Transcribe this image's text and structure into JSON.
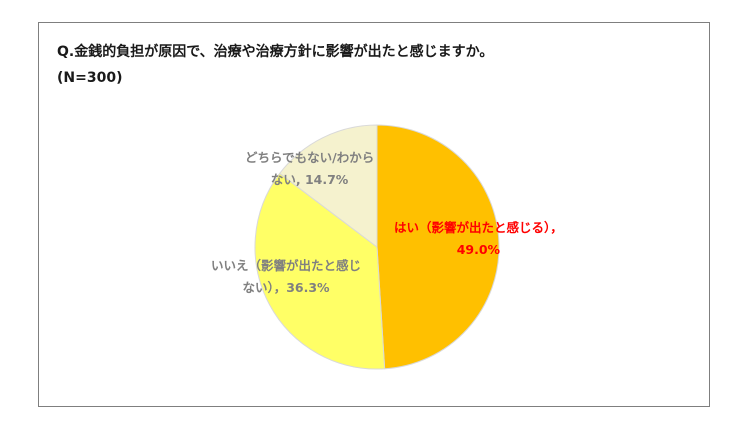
{
  "chart_data": {
    "type": "pie",
    "title": "Q.金銭的負担が原因で、治療や治療方針に影響が出たと感じますか。",
    "subtitle": "(N=300)",
    "slices": [
      {
        "name": "はい（影響が出たと感じる）",
        "value": 49.0,
        "label_lines": [
          "はい（影響が出たと感じる），",
          "49.0%"
        ],
        "color": "#FFC000",
        "label_color": "#FF0000"
      },
      {
        "name": "いいえ（影響が出たと感じない）",
        "value": 36.3,
        "label_lines": [
          "いいえ（影響が出たと感じ",
          "ない），36.3%"
        ],
        "color": "#FFFF66",
        "label_color": "#808080"
      },
      {
        "name": "どちらでもない/わからない",
        "value": 14.7,
        "label_lines": [
          "どちらでもない/わから",
          "ない, 14.7%"
        ],
        "color": "#F5F2CE",
        "label_color": "#808080"
      }
    ],
    "start_angle_deg": 0,
    "direction": "clockwise"
  }
}
